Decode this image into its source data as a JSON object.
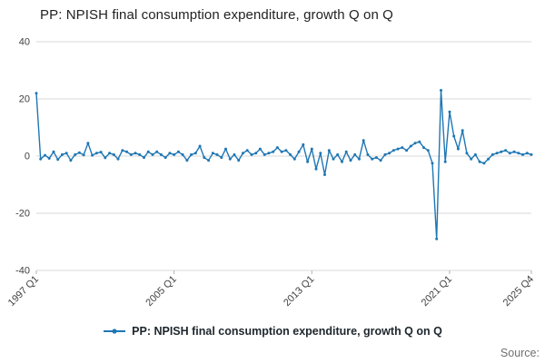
{
  "title": "PP: NPISH final consumption expenditure, growth Q on Q",
  "legend": {
    "label": "PP: NPISH final consumption expenditure, growth Q on Q"
  },
  "source_label": "Source:",
  "colors": {
    "line": "#1f77b4",
    "grid": "#d9d9d9",
    "tick": "#b3b3b3",
    "tick_text": "#414042"
  },
  "chart_data": {
    "type": "line",
    "title": "PP: NPISH final consumption expenditure, growth Q on Q",
    "xlabel": "",
    "ylabel": "",
    "ylim": [
      -40,
      40
    ],
    "y_ticks": [
      -40,
      -20,
      0,
      20,
      40
    ],
    "grid": "horizontal",
    "legend_position": "bottom",
    "x_unit": "quarter",
    "x_start": "1997 Q1",
    "x_end": "2025 Q4",
    "x_tick_labels": [
      "1997 Q1",
      "2005 Q1",
      "2013 Q1",
      "2021 Q1",
      "2025 Q4"
    ],
    "x_tick_indices": [
      0,
      32,
      64,
      96,
      115
    ],
    "series": [
      {
        "name": "PP: NPISH final consumption expenditure, growth Q on Q",
        "values": [
          22,
          -1,
          0.3,
          -0.8,
          1.5,
          -1.2,
          0.5,
          1.0,
          -1.5,
          0.5,
          1.2,
          0.4,
          4.5,
          0.3,
          1.0,
          1.4,
          -0.6,
          1.0,
          0.5,
          -1.0,
          2.0,
          1.5,
          0.5,
          1.0,
          0.5,
          -0.5,
          1.5,
          0.5,
          1.5,
          0.5,
          -0.5,
          1.0,
          0.5,
          1.5,
          0.5,
          -1.5,
          0.5,
          1.0,
          3.5,
          -0.5,
          -1.5,
          1.0,
          0.5,
          -0.5,
          2.5,
          -1.0,
          0.5,
          -1.5,
          1.0,
          2.0,
          0.5,
          1.0,
          2.5,
          0.5,
          1.0,
          1.5,
          3.0,
          1.5,
          2.0,
          0.5,
          -1.0,
          1.5,
          4.0,
          -2.0,
          2.5,
          -4.5,
          1.0,
          -6.5,
          2.0,
          -1.0,
          0.5,
          -2.0,
          1.5,
          -1.5,
          0.5,
          -1.0,
          5.5,
          0.5,
          -1.0,
          -0.5,
          -1.5,
          0.5,
          1.0,
          2.0,
          2.5,
          3.0,
          2.0,
          3.5,
          4.5,
          5.0,
          3.0,
          2.0,
          -2.5,
          -29.0,
          23.0,
          -2.0,
          15.5,
          7.0,
          2.5,
          9.0,
          1.0,
          -1.0,
          0.5,
          -2.0,
          -2.5,
          -1.0,
          0.5,
          1.0,
          1.5,
          2.0,
          1.0,
          1.5,
          1.0,
          0.5,
          1.0,
          0.5
        ]
      }
    ]
  }
}
